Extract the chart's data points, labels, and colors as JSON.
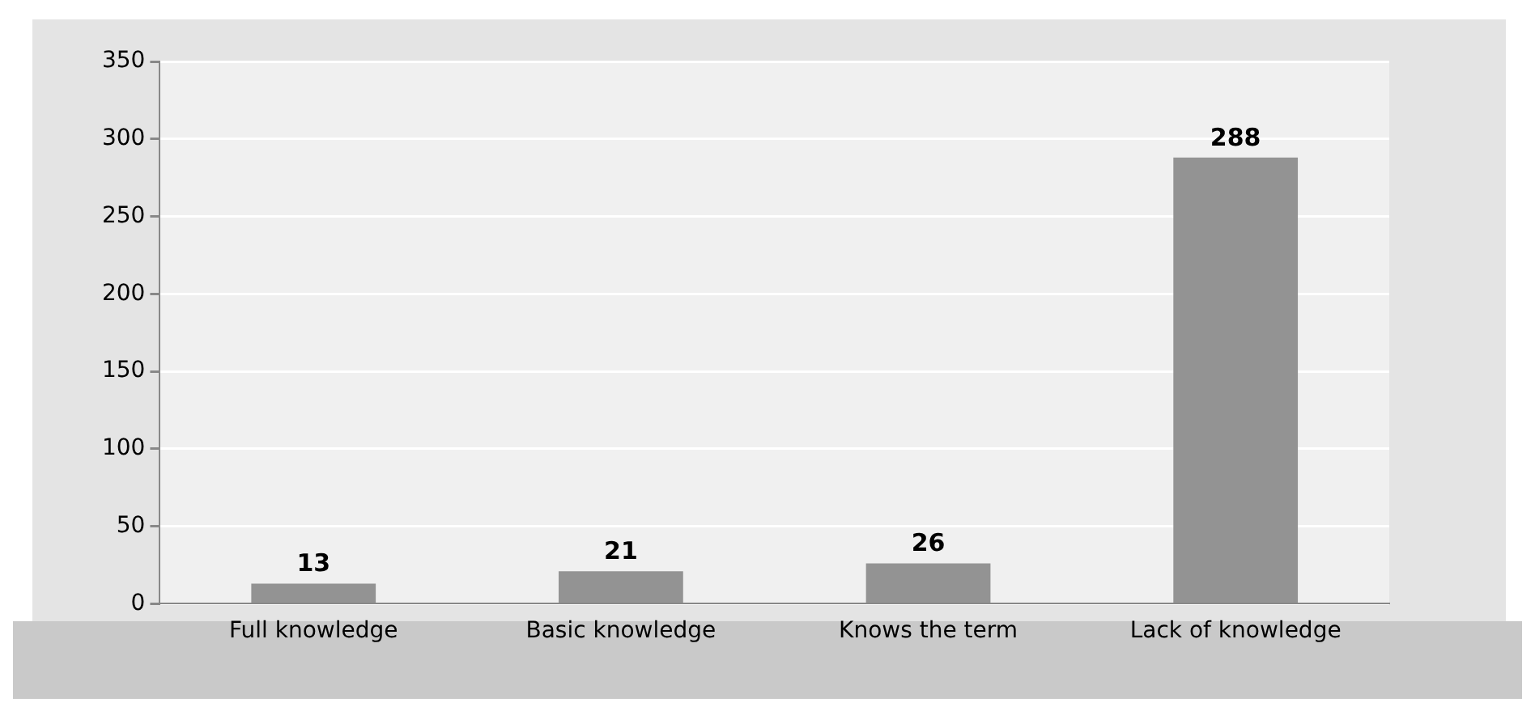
{
  "chart_data": {
    "type": "bar",
    "categories": [
      "Full knowledge",
      "Basic knowledge",
      "Knows the term",
      "Lack of knowledge"
    ],
    "values": [
      13,
      21,
      26,
      288
    ],
    "color": "#939393",
    "ylim": [
      0,
      350
    ],
    "yticks": [
      0,
      50,
      100,
      150,
      200,
      250,
      300,
      350
    ],
    "grid": "y",
    "data_labels": true,
    "legend": false
  }
}
